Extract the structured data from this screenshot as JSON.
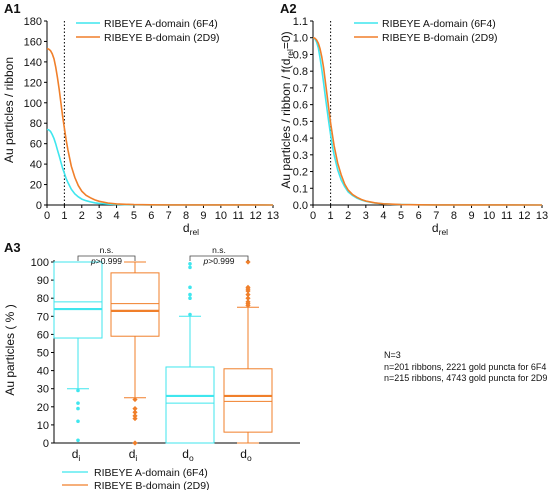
{
  "colors": {
    "a_domain": "#3fe6ee",
    "b_domain": "#f07f2a"
  },
  "chart_data": [
    {
      "panel": "A1",
      "type": "line",
      "xlabel": "d",
      "xlabel_sub": "rel",
      "ylabel": "Au particles / ribbon",
      "xlim": [
        0,
        13
      ],
      "ylim": [
        0,
        180
      ],
      "xticks": [
        0,
        1,
        2,
        3,
        4,
        5,
        6,
        7,
        8,
        9,
        10,
        11,
        12,
        13
      ],
      "yticks": [
        0,
        20,
        40,
        60,
        80,
        100,
        120,
        140,
        160,
        180
      ],
      "vline": 1,
      "legend": "top-right",
      "series": [
        {
          "name": "RIBEYE A-domain (6F4)",
          "color": "#3fe6ee",
          "x": [
            0,
            0.1,
            0.2,
            0.3,
            0.4,
            0.5,
            0.6,
            0.7,
            0.8,
            0.9,
            1,
            1.1,
            1.2,
            1.4,
            1.6,
            1.8,
            2,
            2.25,
            2.5,
            2.75,
            3,
            3.5,
            4,
            4.5,
            5,
            6,
            7,
            13
          ],
          "y": [
            74,
            73.5,
            72,
            69,
            65,
            60,
            54,
            48,
            42,
            36,
            31,
            26,
            22,
            15.5,
            11,
            8,
            5.8,
            4.2,
            3,
            2.2,
            1.6,
            0.9,
            0.5,
            0.3,
            0.2,
            0.1,
            0.05,
            0
          ]
        },
        {
          "name": "RIBEYE B-domain (2D9)",
          "color": "#f07f2a",
          "x": [
            0,
            0.1,
            0.2,
            0.3,
            0.4,
            0.5,
            0.6,
            0.7,
            0.8,
            0.9,
            1,
            1.1,
            1.2,
            1.4,
            1.6,
            1.8,
            2,
            2.25,
            2.5,
            2.75,
            3,
            3.5,
            4,
            4.5,
            5,
            6,
            7,
            13
          ],
          "y": [
            153,
            152.5,
            151,
            148,
            143,
            135,
            125,
            113,
            100,
            87,
            75,
            64,
            54,
            38,
            27,
            19,
            13.5,
            9.5,
            7,
            5,
            3.6,
            2,
            1.1,
            0.7,
            0.4,
            0.15,
            0.05,
            0
          ]
        }
      ]
    },
    {
      "panel": "A2",
      "type": "line",
      "xlabel": "d",
      "xlabel_sub": "rel",
      "ylabel_parts": [
        "Au particles / ribbon / f(d",
        "rel",
        "=0)"
      ],
      "xlim": [
        0,
        13
      ],
      "ylim": [
        0,
        1.1
      ],
      "xticks": [
        0,
        1,
        2,
        3,
        4,
        5,
        6,
        7,
        8,
        9,
        10,
        11,
        12,
        13
      ],
      "yticks": [
        0,
        0.1,
        0.2,
        0.3,
        0.4,
        0.5,
        0.6,
        0.7,
        0.8,
        0.9,
        1.0,
        1.1
      ],
      "ytick_labels": [
        "0.0",
        "0.1",
        "0.2",
        "0.3",
        "0.4",
        "0.5",
        "0.6",
        "0.7",
        "0.8",
        "0.9",
        "1.0",
        "1.1"
      ],
      "vline": 1,
      "legend": "top-right",
      "series": [
        {
          "name": "RIBEYE A-domain (6F4)",
          "color": "#3fe6ee",
          "x": [
            0,
            0.1,
            0.2,
            0.3,
            0.4,
            0.5,
            0.6,
            0.7,
            0.8,
            0.9,
            1,
            1.1,
            1.2,
            1.4,
            1.6,
            1.8,
            2,
            2.25,
            2.5,
            2.75,
            3,
            3.5,
            4,
            4.5,
            5,
            6,
            7,
            13
          ],
          "y": [
            1,
            0.995,
            0.975,
            0.94,
            0.88,
            0.81,
            0.73,
            0.65,
            0.57,
            0.49,
            0.42,
            0.35,
            0.3,
            0.21,
            0.15,
            0.11,
            0.078,
            0.057,
            0.041,
            0.03,
            0.022,
            0.012,
            0.007,
            0.004,
            0.003,
            0.001,
            0.0005,
            0
          ]
        },
        {
          "name": "RIBEYE B-domain (2D9)",
          "color": "#f07f2a",
          "x": [
            0,
            0.1,
            0.2,
            0.3,
            0.4,
            0.5,
            0.6,
            0.7,
            0.8,
            0.9,
            1,
            1.1,
            1.2,
            1.4,
            1.6,
            1.8,
            2,
            2.25,
            2.5,
            2.75,
            3,
            3.5,
            4,
            4.5,
            5,
            6,
            7,
            13
          ],
          "y": [
            1,
            0.997,
            0.987,
            0.967,
            0.935,
            0.885,
            0.82,
            0.74,
            0.655,
            0.57,
            0.49,
            0.42,
            0.355,
            0.25,
            0.18,
            0.125,
            0.089,
            0.062,
            0.046,
            0.033,
            0.024,
            0.013,
            0.007,
            0.0045,
            0.0026,
            0.001,
            0.0003,
            0
          ]
        }
      ]
    },
    {
      "panel": "A3",
      "type": "box",
      "ylabel": "Au particles ( % )",
      "ylim": [
        0,
        100
      ],
      "yticks": [
        0,
        10,
        20,
        30,
        40,
        50,
        60,
        70,
        80,
        90,
        100
      ],
      "categories": [
        "d",
        "d",
        "d",
        "d"
      ],
      "category_subs": [
        "i",
        "i",
        "o",
        "o"
      ],
      "boxes": [
        {
          "series": "RIBEYE A-domain (6F4)",
          "color": "#3fe6ee",
          "style": "points",
          "whisker_low": 30,
          "q1": 58,
          "median": 74,
          "mean": 78,
          "q3": 100,
          "whisker_high": 100,
          "outliers": [
            29,
            22,
            19,
            12,
            1.5
          ]
        },
        {
          "series": "RIBEYE B-domain (2D9)",
          "color": "#f07f2a",
          "style": "diamonds",
          "whisker_low": 25,
          "q1": 59,
          "median": 73,
          "mean": 77,
          "q3": 94,
          "whisker_high": 100,
          "outliers": [
            24,
            19,
            17,
            15,
            13.5,
            0
          ]
        },
        {
          "series": "RIBEYE A-domain (6F4)",
          "color": "#3fe6ee",
          "style": "points",
          "whisker_low": 0,
          "q1": 0,
          "median": 26,
          "mean": 22,
          "q3": 42,
          "whisker_high": 70,
          "outliers": [
            71,
            80,
            82,
            86,
            97,
            99
          ]
        },
        {
          "series": "RIBEYE B-domain (2D9)",
          "color": "#f07f2a",
          "style": "diamonds",
          "whisker_low": 0,
          "q1": 6,
          "median": 26,
          "mean": 23,
          "q3": 41,
          "whisker_high": 75,
          "outliers": [
            76,
            77,
            78,
            80,
            82,
            84,
            85,
            86,
            100
          ]
        }
      ],
      "comparisons": [
        {
          "pair": [
            0,
            1
          ],
          "label": "n.s.",
          "p_prefix": "p",
          "p_value": ">0.999"
        },
        {
          "pair": [
            2,
            3
          ],
          "label": "n.s.",
          "p_prefix": "p",
          "p_value": ">0.999"
        }
      ],
      "legend": "bottom"
    }
  ],
  "panels": {
    "a1_label": "A1",
    "a2_label": "A2",
    "a3_label": "A3"
  },
  "notes": {
    "n_line": "N=3",
    "line_6f4": "n=201 ribbons, 2221 gold puncta for 6F4",
    "line_2d9": "n=215 ribbons, 4743 gold puncta for 2D9"
  }
}
